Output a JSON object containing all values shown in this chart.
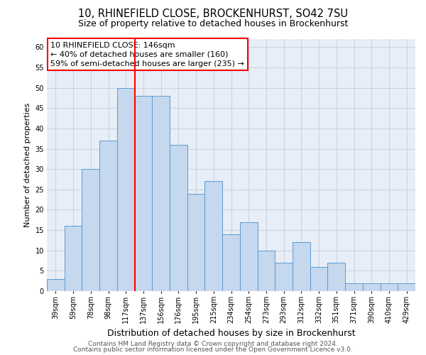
{
  "title": "10, RHINEFIELD CLOSE, BROCKENHURST, SO42 7SU",
  "subtitle": "Size of property relative to detached houses in Brockenhurst",
  "xlabel": "Distribution of detached houses by size in Brockenhurst",
  "ylabel": "Number of detached properties",
  "bar_labels": [
    "39sqm",
    "59sqm",
    "78sqm",
    "98sqm",
    "117sqm",
    "137sqm",
    "156sqm",
    "176sqm",
    "195sqm",
    "215sqm",
    "234sqm",
    "254sqm",
    "273sqm",
    "293sqm",
    "312sqm",
    "332sqm",
    "351sqm",
    "371sqm",
    "390sqm",
    "410sqm",
    "429sqm"
  ],
  "bar_heights": [
    3,
    16,
    30,
    37,
    50,
    48,
    48,
    36,
    24,
    27,
    14,
    17,
    10,
    7,
    12,
    6,
    7,
    2,
    2,
    2,
    2
  ],
  "bar_color": "#c5d8ed",
  "bar_edge_color": "#5b9bd5",
  "grid_color": "#c8d4e3",
  "background_color": "#e8eef7",
  "vline_x": 4.5,
  "vline_color": "red",
  "annotation_line1": "10 RHINEFIELD CLOSE: 146sqm",
  "annotation_line2": "← 40% of detached houses are smaller (160)",
  "annotation_line3": "59% of semi-detached houses are larger (235) →",
  "footer_line1": "Contains HM Land Registry data © Crown copyright and database right 2024.",
  "footer_line2": "Contains public sector information licensed under the Open Government Licence v3.0.",
  "ylim": [
    0,
    62
  ],
  "yticks": [
    0,
    5,
    10,
    15,
    20,
    25,
    30,
    35,
    40,
    45,
    50,
    55,
    60
  ],
  "title_fontsize": 10.5,
  "subtitle_fontsize": 9,
  "xlabel_fontsize": 9,
  "ylabel_fontsize": 8,
  "tick_fontsize": 7,
  "annotation_fontsize": 8,
  "footer_fontsize": 6.5
}
